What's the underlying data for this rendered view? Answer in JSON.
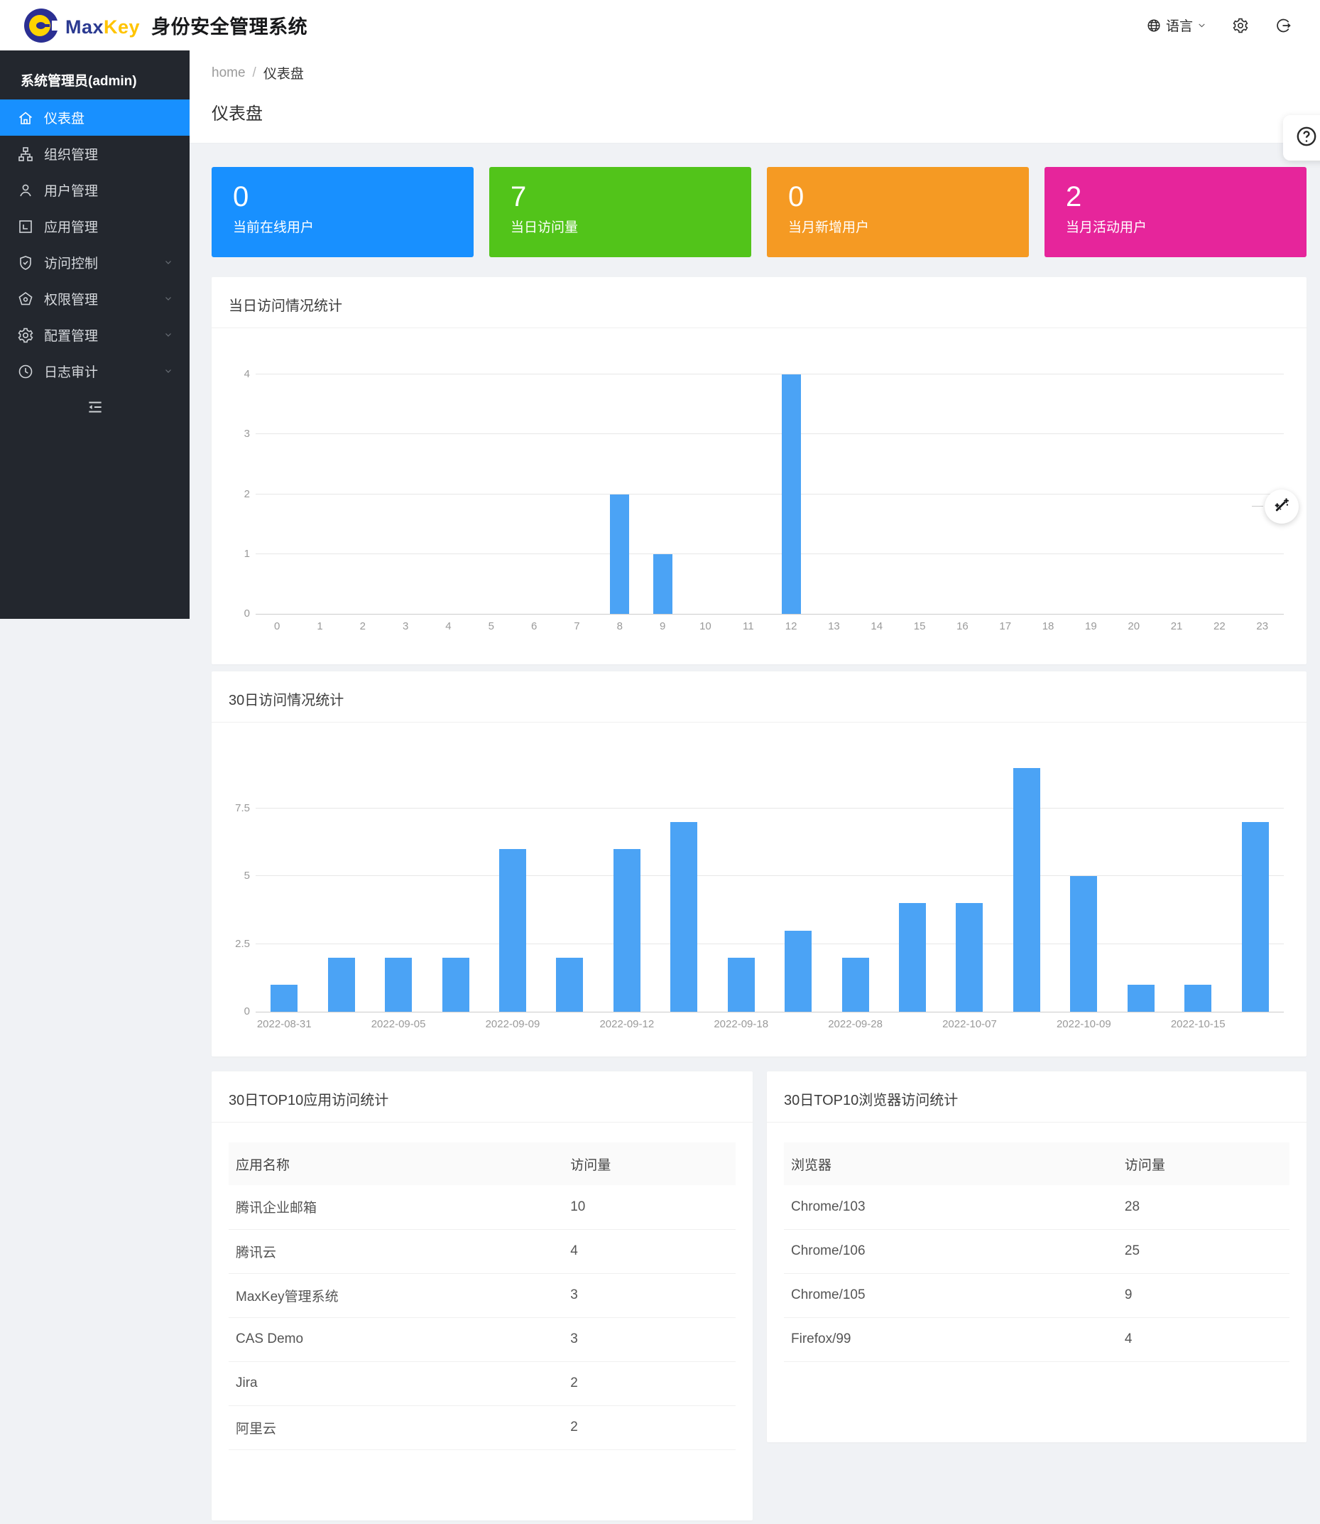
{
  "header": {
    "brand": {
      "max": "Max",
      "key": "Key",
      "product": "身份安全管理系统"
    },
    "language_label": "语言"
  },
  "sidebar": {
    "user": "系统管理员(admin)",
    "items": [
      {
        "key": "dashboard",
        "label": "仪表盘",
        "icon": "home",
        "active": true,
        "expandable": false
      },
      {
        "key": "org",
        "label": "组织管理",
        "icon": "org",
        "active": false,
        "expandable": false
      },
      {
        "key": "users",
        "label": "用户管理",
        "icon": "user",
        "active": false,
        "expandable": false
      },
      {
        "key": "apps",
        "label": "应用管理",
        "icon": "app",
        "active": false,
        "expandable": false
      },
      {
        "key": "access",
        "label": "访问控制",
        "icon": "shield",
        "active": false,
        "expandable": true
      },
      {
        "key": "perms",
        "label": "权限管理",
        "icon": "perm",
        "active": false,
        "expandable": true
      },
      {
        "key": "config",
        "label": "配置管理",
        "icon": "gear",
        "active": false,
        "expandable": true
      },
      {
        "key": "audit",
        "label": "日志审计",
        "icon": "clock",
        "active": false,
        "expandable": true
      }
    ]
  },
  "breadcrumb": {
    "home": "home",
    "separator": "/",
    "current": "仪表盘"
  },
  "page_title": "仪表盘",
  "stat_cards": [
    {
      "value": "0",
      "label": "当前在线用户",
      "color": "#1890ff"
    },
    {
      "value": "7",
      "label": "当日访问量",
      "color": "#52c41a"
    },
    {
      "value": "0",
      "label": "当月新增用户",
      "color": "#f59a23"
    },
    {
      "value": "2",
      "label": "当月活动用户",
      "color": "#e6259b"
    }
  ],
  "chart_data": [
    {
      "type": "bar",
      "title": "当日访问情况统计",
      "categories": [
        "0",
        "1",
        "2",
        "3",
        "4",
        "5",
        "6",
        "7",
        "8",
        "9",
        "10",
        "11",
        "12",
        "13",
        "14",
        "15",
        "16",
        "17",
        "18",
        "19",
        "20",
        "21",
        "22",
        "23"
      ],
      "values": [
        0,
        0,
        0,
        0,
        0,
        0,
        0,
        0,
        2,
        1,
        0,
        0,
        4,
        0,
        0,
        0,
        0,
        0,
        0,
        0,
        0,
        0,
        0,
        0
      ],
      "yticks": [
        0,
        1,
        2,
        3,
        4
      ],
      "ylim": [
        0,
        4
      ],
      "xlabel": "hour",
      "ylabel": "",
      "grid": true,
      "legend": "none",
      "bar_color": "#4ba3f5"
    },
    {
      "type": "bar",
      "title": "30日访问情况统计",
      "categories": [
        "2022-08-31",
        "",
        "2022-09-05",
        "",
        "2022-09-09",
        "",
        "2022-09-12",
        "",
        "2022-09-18",
        "",
        "2022-09-28",
        "",
        "2022-10-07",
        "",
        "2022-10-09",
        "",
        "2022-10-15",
        ""
      ],
      "values": [
        1,
        2,
        2,
        2,
        6,
        2,
        6,
        7,
        2,
        3,
        2,
        4,
        4,
        9,
        5,
        1,
        1,
        7
      ],
      "yticks": [
        0,
        2.5,
        5,
        7.5
      ],
      "ylim": [
        0,
        9.2
      ],
      "xlabel": "date",
      "ylabel": "",
      "grid": true,
      "legend": "none",
      "bar_color": "#4ba3f5"
    }
  ],
  "tables": [
    {
      "title": "30日TOP10应用访问统计",
      "columns": [
        "应用名称",
        "访问量"
      ],
      "rows": [
        [
          "腾讯企业邮箱",
          "10"
        ],
        [
          "腾讯云",
          "4"
        ],
        [
          "MaxKey管理系统",
          "3"
        ],
        [
          "CAS Demo",
          "3"
        ],
        [
          "Jira",
          "2"
        ],
        [
          "阿里云",
          "2"
        ]
      ]
    },
    {
      "title": "30日TOP10浏览器访问统计",
      "columns": [
        "浏览器",
        "访问量"
      ],
      "rows": [
        [
          "Chrome/103",
          "28"
        ],
        [
          "Chrome/106",
          "25"
        ],
        [
          "Chrome/105",
          "9"
        ],
        [
          "Firefox/99",
          "4"
        ]
      ]
    }
  ],
  "floating": {
    "help_icon": "question-circle",
    "wand_icon": "magic-wand"
  }
}
